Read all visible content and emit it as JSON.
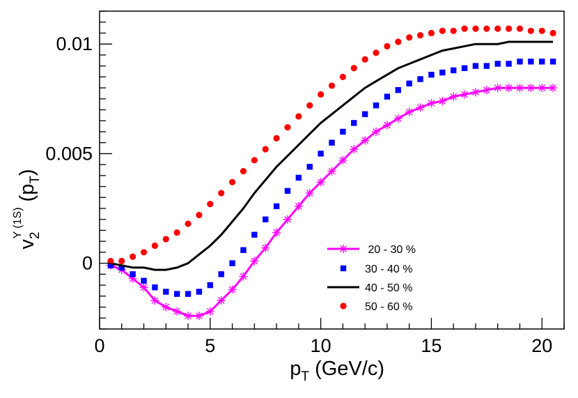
{
  "chart_data": {
    "type": "scatter",
    "title": "",
    "xlabel": {
      "main": "p",
      "sub": "T",
      "rest": " (GeV/c)"
    },
    "ylabel": {
      "main": "v",
      "sub": "2",
      "sup": "Υ (1S)",
      "rest": "(p",
      "sub2": "T",
      "close": ")"
    },
    "xlim": [
      0,
      21
    ],
    "ylim": [
      -0.003,
      0.0115
    ],
    "xticks": [
      0,
      5,
      10,
      15,
      20
    ],
    "xtick_labels": [
      "0",
      "5",
      "10",
      "15",
      "20"
    ],
    "yticks": [
      0,
      0.005,
      0.01
    ],
    "ytick_labels": [
      "0",
      "0.005",
      "0.01"
    ],
    "legend_position": "center-right",
    "series": [
      {
        "name": " 20 - 30 %",
        "marker": "star",
        "line": true,
        "color": "#ff00ff",
        "x": [
          0.5,
          1,
          1.5,
          2,
          2.5,
          3,
          3.5,
          4,
          4.5,
          5,
          5.5,
          6,
          6.5,
          7,
          7.5,
          8,
          8.5,
          9,
          9.5,
          10,
          10.5,
          11,
          11.5,
          12,
          12.5,
          13,
          13.5,
          14,
          14.5,
          15,
          15.5,
          16,
          16.5,
          17,
          17.5,
          18,
          18.5,
          19,
          19.5,
          20,
          20.5
        ],
        "y": [
          -0.0001,
          -0.0003,
          -0.0007,
          -0.0011,
          -0.0017,
          -0.002,
          -0.0022,
          -0.0024,
          -0.0024,
          -0.0022,
          -0.0017,
          -0.0012,
          -0.0006,
          0.0001,
          0.0007,
          0.0014,
          0.002,
          0.0026,
          0.0032,
          0.0037,
          0.0042,
          0.0047,
          0.0052,
          0.0056,
          0.006,
          0.0063,
          0.0066,
          0.0069,
          0.0071,
          0.0073,
          0.0074,
          0.0076,
          0.0077,
          0.0078,
          0.0079,
          0.008,
          0.008,
          0.008,
          0.008,
          0.008,
          0.008
        ]
      },
      {
        "name": "30 - 40 %",
        "marker": "square",
        "line": false,
        "color": "#0000ff",
        "x": [
          0.5,
          1,
          1.5,
          2,
          2.5,
          3,
          3.5,
          4,
          4.5,
          5,
          5.5,
          6,
          6.5,
          7,
          7.5,
          8,
          8.5,
          9,
          9.5,
          10,
          10.5,
          11,
          11.5,
          12,
          12.5,
          13,
          13.5,
          14,
          14.5,
          15,
          15.5,
          16,
          16.5,
          17,
          17.5,
          18,
          18.5,
          19,
          19.5,
          20,
          20.5
        ],
        "y": [
          -0.0001,
          -0.0002,
          -0.0005,
          -0.0008,
          -0.0011,
          -0.0013,
          -0.0014,
          -0.0014,
          -0.0013,
          -0.001,
          -0.0005,
          0.0,
          0.0006,
          0.0013,
          0.002,
          0.0026,
          0.0033,
          0.0039,
          0.0044,
          0.005,
          0.0055,
          0.006,
          0.0064,
          0.0068,
          0.0072,
          0.0076,
          0.0079,
          0.0082,
          0.0084,
          0.0086,
          0.0087,
          0.0088,
          0.0089,
          0.009,
          0.009,
          0.0091,
          0.0091,
          0.0092,
          0.0092,
          0.0092,
          0.0092
        ]
      },
      {
        "name": "40 - 50 %",
        "marker": "none",
        "line": true,
        "color": "#000000",
        "x": [
          0.5,
          1,
          1.5,
          2,
          2.5,
          3,
          3.5,
          4,
          4.5,
          5,
          5.5,
          6,
          6.5,
          7,
          7.5,
          8,
          8.5,
          9,
          9.5,
          10,
          10.5,
          11,
          11.5,
          12,
          12.5,
          13,
          13.5,
          14,
          14.5,
          15,
          15.5,
          16,
          16.5,
          17,
          17.5,
          18,
          18.5,
          19,
          19.5,
          20,
          20.5
        ],
        "y": [
          0.0,
          -0.0001,
          -0.0002,
          -0.0002,
          -0.0003,
          -0.0003,
          -0.0002,
          0.0,
          0.0004,
          0.0008,
          0.0013,
          0.0019,
          0.0025,
          0.0032,
          0.0038,
          0.0044,
          0.0049,
          0.0054,
          0.0059,
          0.0064,
          0.0068,
          0.0072,
          0.0076,
          0.008,
          0.0083,
          0.0086,
          0.0089,
          0.0091,
          0.0093,
          0.0095,
          0.0097,
          0.0098,
          0.0099,
          0.01,
          0.01,
          0.01,
          0.0101,
          0.0101,
          0.0101,
          0.0101,
          0.0101
        ]
      },
      {
        "name": "50 - 60 %",
        "marker": "circle",
        "line": false,
        "color": "#ff0000",
        "x": [
          0.5,
          1,
          1.5,
          2,
          2.5,
          3,
          3.5,
          4,
          4.5,
          5,
          5.5,
          6,
          6.5,
          7,
          7.5,
          8,
          8.5,
          9,
          9.5,
          10,
          10.5,
          11,
          11.5,
          12,
          12.5,
          13,
          13.5,
          14,
          14.5,
          15,
          15.5,
          16,
          16.5,
          17,
          17.5,
          18,
          18.5,
          19,
          19.5,
          20,
          20.5
        ],
        "y": [
          0.0001,
          0.0001,
          0.0003,
          0.0005,
          0.0008,
          0.0011,
          0.0014,
          0.0018,
          0.0022,
          0.0027,
          0.0032,
          0.0037,
          0.0042,
          0.0047,
          0.0052,
          0.0057,
          0.0062,
          0.0067,
          0.0072,
          0.0077,
          0.0081,
          0.0085,
          0.0089,
          0.0093,
          0.0096,
          0.0099,
          0.0101,
          0.0103,
          0.0104,
          0.0105,
          0.0106,
          0.0106,
          0.0107,
          0.0107,
          0.0107,
          0.0107,
          0.0107,
          0.0107,
          0.0106,
          0.0106,
          0.0105
        ]
      }
    ]
  }
}
